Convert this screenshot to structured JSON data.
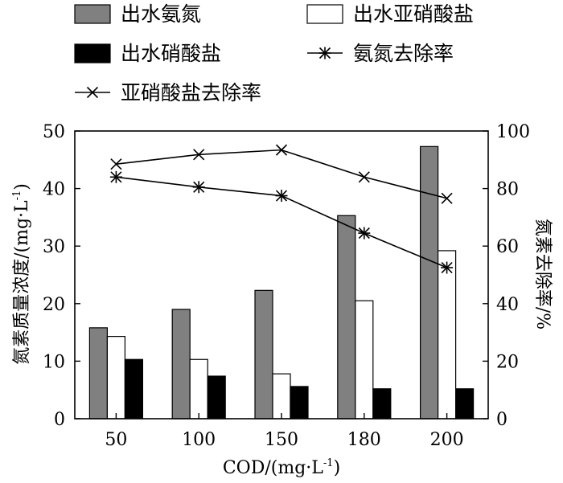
{
  "chart_data": {
    "type": "bar",
    "categories": [
      "50",
      "100",
      "150",
      "180",
      "200"
    ],
    "xlabel": "COD/(mg·L",
    "xlabel_sup": "-1",
    "xlabel_tail": ")",
    "ylabel": "氮素质量浓度/(mg·L",
    "ylabel_sup": "-1",
    "ylabel_tail": ")",
    "y2label": "氮素去除率/%",
    "ylim": [
      0,
      50
    ],
    "y2lim": [
      0,
      100
    ],
    "yticks": [
      "0",
      "10",
      "20",
      "30",
      "40",
      "50"
    ],
    "y2ticks": [
      "0",
      "20",
      "40",
      "60",
      "80",
      "100"
    ],
    "grid": false,
    "legend_position": "top",
    "bar_series": [
      {
        "name": "出水氨氮",
        "values": [
          15.8,
          19.0,
          22.3,
          35.3,
          47.3
        ],
        "color": "#808080"
      },
      {
        "name": "出水亚硝酸盐",
        "values": [
          14.3,
          10.3,
          7.8,
          20.5,
          29.2
        ],
        "color": "#ffffff"
      },
      {
        "name": "出水硝酸盐",
        "values": [
          10.3,
          7.4,
          5.6,
          5.2,
          5.2
        ],
        "color": "#000000"
      }
    ],
    "line_series": [
      {
        "name": "氨氮去除率",
        "values": [
          84,
          80.5,
          77.5,
          64.5,
          52.5
        ],
        "marker": "asterisk",
        "axis": "right"
      },
      {
        "name": "亚硝酸盐去除率",
        "values": [
          88.5,
          91.8,
          93.4,
          84,
          76.6
        ],
        "marker": "x",
        "axis": "right"
      }
    ]
  }
}
